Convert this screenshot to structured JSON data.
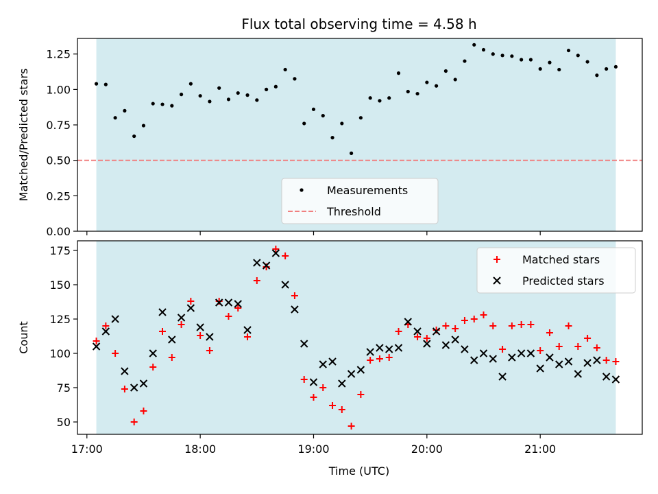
{
  "figure": {
    "title": "Flux total observing time = 4.58 h",
    "xlabel": "Time (UTC)"
  },
  "colors": {
    "shade": "#d4ebf0",
    "measurement": "#000000",
    "threshold": "#f08080",
    "matched": "#ff0000",
    "predicted": "#000000"
  },
  "chart_data": [
    {
      "type": "scatter",
      "ylabel": "Matched/Predicted stars",
      "xlim": [
        "16:55",
        "21:54"
      ],
      "ylim": [
        0,
        1.36
      ],
      "yticks": [
        0.0,
        0.25,
        0.5,
        0.75,
        1.0,
        1.25
      ],
      "ytick_labels": [
        "0.00",
        "0.25",
        "0.50",
        "0.75",
        "1.00",
        "1.25"
      ],
      "shaded_span": [
        "17:05",
        "21:40"
      ],
      "threshold": 0.5,
      "legend": {
        "placement": "lower-center",
        "entries": [
          "Measurements",
          "Threshold"
        ]
      },
      "series": [
        {
          "name": "Measurements",
          "points": [
            [
              "17:05",
              1.04
            ],
            [
              "17:10",
              1.035
            ],
            [
              "17:15",
              0.8
            ],
            [
              "17:20",
              0.85
            ],
            [
              "17:25",
              0.67
            ],
            [
              "17:30",
              0.745
            ],
            [
              "17:35",
              0.9
            ],
            [
              "17:40",
              0.895
            ],
            [
              "17:45",
              0.885
            ],
            [
              "17:50",
              0.965
            ],
            [
              "17:55",
              1.04
            ],
            [
              "18:00",
              0.955
            ],
            [
              "18:05",
              0.915
            ],
            [
              "18:10",
              1.01
            ],
            [
              "18:15",
              0.93
            ],
            [
              "18:20",
              0.975
            ],
            [
              "18:25",
              0.96
            ],
            [
              "18:30",
              0.925
            ],
            [
              "18:35",
              1.0
            ],
            [
              "18:40",
              1.02
            ],
            [
              "18:45",
              1.14
            ],
            [
              "18:50",
              1.075
            ],
            [
              "18:55",
              0.76
            ],
            [
              "19:00",
              0.86
            ],
            [
              "19:05",
              0.815
            ],
            [
              "19:10",
              0.66
            ],
            [
              "19:15",
              0.76
            ],
            [
              "19:20",
              0.55
            ],
            [
              "19:25",
              0.8
            ],
            [
              "19:30",
              0.94
            ],
            [
              "19:35",
              0.92
            ],
            [
              "19:40",
              0.94
            ],
            [
              "19:45",
              1.115
            ],
            [
              "19:50",
              0.985
            ],
            [
              "19:55",
              0.97
            ],
            [
              "20:00",
              1.05
            ],
            [
              "20:05",
              1.025
            ],
            [
              "20:10",
              1.13
            ],
            [
              "20:15",
              1.07
            ],
            [
              "20:20",
              1.2
            ],
            [
              "20:25",
              1.315
            ],
            [
              "20:30",
              1.28
            ],
            [
              "20:35",
              1.25
            ],
            [
              "20:40",
              1.24
            ],
            [
              "20:45",
              1.235
            ],
            [
              "20:50",
              1.21
            ],
            [
              "20:55",
              1.21
            ],
            [
              "21:00",
              1.145
            ],
            [
              "21:05",
              1.19
            ],
            [
              "21:10",
              1.14
            ],
            [
              "21:15",
              1.275
            ],
            [
              "21:20",
              1.24
            ],
            [
              "21:25",
              1.195
            ],
            [
              "21:30",
              1.1
            ],
            [
              "21:35",
              1.145
            ],
            [
              "21:40",
              1.16
            ]
          ]
        }
      ]
    },
    {
      "type": "scatter",
      "ylabel": "Count",
      "xlim": [
        "16:55",
        "21:54"
      ],
      "ylim": [
        41,
        182
      ],
      "yticks": [
        50,
        75,
        100,
        125,
        150,
        175
      ],
      "ytick_labels": [
        "50",
        "75",
        "100",
        "125",
        "150",
        "175"
      ],
      "xticks": [
        "17:00",
        "18:00",
        "19:00",
        "20:00",
        "21:00"
      ],
      "xtick_labels": [
        "17:00",
        "18:00",
        "19:00",
        "20:00",
        "21:00"
      ],
      "shaded_span": [
        "17:05",
        "21:40"
      ],
      "legend": {
        "placement": "upper-right",
        "entries": [
          "Matched stars",
          "Predicted stars"
        ]
      },
      "series": [
        {
          "name": "Matched stars",
          "points": [
            [
              "17:05",
              109
            ],
            [
              "17:10",
              120
            ],
            [
              "17:15",
              100
            ],
            [
              "17:20",
              74
            ],
            [
              "17:25",
              50
            ],
            [
              "17:30",
              58
            ],
            [
              "17:35",
              90
            ],
            [
              "17:40",
              116
            ],
            [
              "17:45",
              97
            ],
            [
              "17:50",
              121
            ],
            [
              "17:55",
              138
            ],
            [
              "18:00",
              113
            ],
            [
              "18:05",
              102
            ],
            [
              "18:10",
              138
            ],
            [
              "18:15",
              127
            ],
            [
              "18:20",
              133
            ],
            [
              "18:25",
              112
            ],
            [
              "18:30",
              153
            ],
            [
              "18:35",
              163
            ],
            [
              "18:40",
              176
            ],
            [
              "18:45",
              171
            ],
            [
              "18:50",
              142
            ],
            [
              "18:55",
              81
            ],
            [
              "19:00",
              68
            ],
            [
              "19:05",
              75
            ],
            [
              "19:10",
              62
            ],
            [
              "19:15",
              59
            ],
            [
              "19:20",
              47
            ],
            [
              "19:25",
              70
            ],
            [
              "19:30",
              95
            ],
            [
              "19:35",
              96
            ],
            [
              "19:40",
              97
            ],
            [
              "19:45",
              116
            ],
            [
              "19:50",
              121
            ],
            [
              "19:55",
              112
            ],
            [
              "20:00",
              111
            ],
            [
              "20:05",
              117
            ],
            [
              "20:10",
              120
            ],
            [
              "20:15",
              118
            ],
            [
              "20:20",
              124
            ],
            [
              "20:25",
              125
            ],
            [
              "20:30",
              128
            ],
            [
              "20:35",
              120
            ],
            [
              "20:40",
              103
            ],
            [
              "20:45",
              120
            ],
            [
              "20:50",
              121
            ],
            [
              "20:55",
              121
            ],
            [
              "21:00",
              102
            ],
            [
              "21:05",
              115
            ],
            [
              "21:10",
              105
            ],
            [
              "21:15",
              120
            ],
            [
              "21:20",
              105
            ],
            [
              "21:25",
              111
            ],
            [
              "21:30",
              104
            ],
            [
              "21:35",
              95
            ],
            [
              "21:40",
              94
            ]
          ]
        },
        {
          "name": "Predicted stars",
          "points": [
            [
              "17:05",
              105
            ],
            [
              "17:10",
              116
            ],
            [
              "17:15",
              125
            ],
            [
              "17:20",
              87
            ],
            [
              "17:25",
              75
            ],
            [
              "17:30",
              78
            ],
            [
              "17:35",
              100
            ],
            [
              "17:40",
              130
            ],
            [
              "17:45",
              110
            ],
            [
              "17:50",
              126
            ],
            [
              "17:55",
              133
            ],
            [
              "18:00",
              119
            ],
            [
              "18:05",
              112
            ],
            [
              "18:10",
              137
            ],
            [
              "18:15",
              137
            ],
            [
              "18:20",
              136
            ],
            [
              "18:25",
              117
            ],
            [
              "18:30",
              166
            ],
            [
              "18:35",
              164
            ],
            [
              "18:40",
              173
            ],
            [
              "18:45",
              150
            ],
            [
              "18:50",
              132
            ],
            [
              "18:55",
              107
            ],
            [
              "19:00",
              79
            ],
            [
              "19:05",
              92
            ],
            [
              "19:10",
              94
            ],
            [
              "19:15",
              78
            ],
            [
              "19:20",
              85
            ],
            [
              "19:25",
              88
            ],
            [
              "19:30",
              101
            ],
            [
              "19:35",
              104
            ],
            [
              "19:40",
              103
            ],
            [
              "19:45",
              104
            ],
            [
              "19:50",
              123
            ],
            [
              "19:55",
              116
            ],
            [
              "20:00",
              107
            ],
            [
              "20:05",
              116
            ],
            [
              "20:10",
              106
            ],
            [
              "20:15",
              110
            ],
            [
              "20:20",
              103
            ],
            [
              "20:25",
              95
            ],
            [
              "20:30",
              100
            ],
            [
              "20:35",
              96
            ],
            [
              "20:40",
              83
            ],
            [
              "20:45",
              97
            ],
            [
              "20:50",
              100
            ],
            [
              "20:55",
              100
            ],
            [
              "21:00",
              89
            ],
            [
              "21:05",
              97
            ],
            [
              "21:10",
              92
            ],
            [
              "21:15",
              94
            ],
            [
              "21:20",
              85
            ],
            [
              "21:25",
              93
            ],
            [
              "21:30",
              95
            ],
            [
              "21:35",
              83
            ],
            [
              "21:40",
              81
            ]
          ]
        }
      ]
    }
  ]
}
